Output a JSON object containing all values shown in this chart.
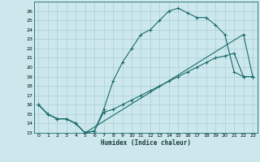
{
  "xlabel": "Humidex (Indice chaleur)",
  "bg_color": "#cce8ed",
  "line_color": "#1a6b6b",
  "grid_color": "#aacdd4",
  "xlim": [
    -0.5,
    23.5
  ],
  "ylim": [
    13,
    27
  ],
  "x_ticks": [
    0,
    1,
    2,
    3,
    4,
    5,
    6,
    7,
    8,
    9,
    10,
    11,
    12,
    13,
    14,
    15,
    16,
    17,
    18,
    19,
    20,
    21,
    22,
    23
  ],
  "y_ticks": [
    13,
    14,
    15,
    16,
    17,
    18,
    19,
    20,
    21,
    22,
    23,
    24,
    25,
    26
  ],
  "series1_x": [
    0,
    1,
    2,
    3,
    4,
    5,
    6,
    7,
    8,
    9,
    10,
    11,
    12,
    13,
    14,
    15,
    16,
    17,
    18,
    19,
    20,
    21,
    22,
    23
  ],
  "series1_y": [
    16,
    15,
    14.5,
    14.5,
    14,
    13,
    13.2,
    15.5,
    18.5,
    20.5,
    22,
    23.5,
    24,
    25,
    26,
    26.3,
    25.8,
    25.3,
    25.3,
    24.5,
    23.5,
    19.5,
    19,
    19
  ],
  "series2_x": [
    0,
    1,
    2,
    3,
    4,
    5,
    22,
    23
  ],
  "series2_y": [
    16,
    15,
    14.5,
    14.5,
    14,
    13,
    23.5,
    19
  ],
  "series3_x": [
    0,
    1,
    2,
    3,
    4,
    5,
    6,
    7,
    8,
    9,
    10,
    11,
    12,
    13,
    14,
    15,
    16,
    17,
    18,
    19,
    20,
    21,
    22,
    23
  ],
  "series3_y": [
    16,
    15,
    14.5,
    14.5,
    14,
    13,
    13.2,
    15.2,
    15.5,
    16,
    16.5,
    17,
    17.5,
    18,
    18.5,
    19,
    19.5,
    20,
    20.5,
    21,
    21.2,
    21.5,
    19,
    19
  ]
}
